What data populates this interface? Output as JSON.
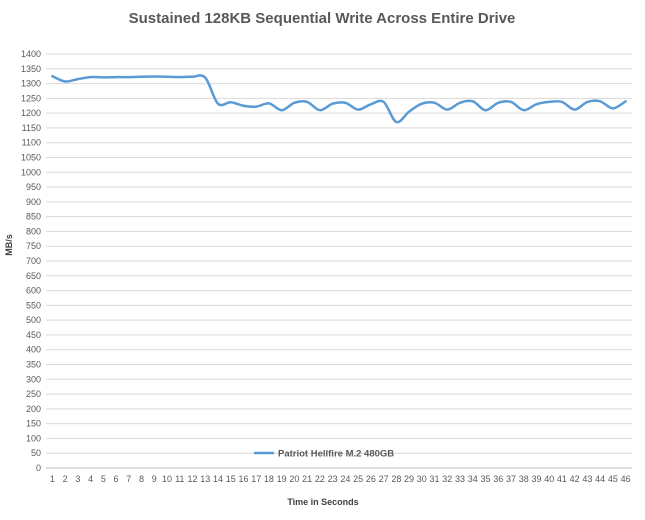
{
  "chart_data": {
    "type": "line",
    "title": "Sustained 128KB Sequential Write Across Entire Drive",
    "xlabel": "Time in Seconds",
    "ylabel": "MB/s",
    "ylim": [
      0,
      1400
    ],
    "ytick_step": 50,
    "grid": true,
    "legend_position": "bottom-left",
    "categories": [
      "1",
      "2",
      "3",
      "4",
      "5",
      "6",
      "7",
      "8",
      "9",
      "10",
      "11",
      "12",
      "13",
      "14",
      "15",
      "16",
      "17",
      "18",
      "19",
      "20",
      "21",
      "22",
      "23",
      "24",
      "25",
      "26",
      "27",
      "28",
      "29",
      "30",
      "31",
      "32",
      "33",
      "34",
      "35",
      "36",
      "37",
      "38",
      "39",
      "40",
      "41",
      "42",
      "43",
      "44",
      "45",
      "46"
    ],
    "series": [
      {
        "name": "Patriot Hellfire M.2 480GB",
        "color": "#5b9bd5",
        "values": [
          1325,
          1307,
          1315,
          1322,
          1321,
          1322,
          1322,
          1323,
          1324,
          1323,
          1322,
          1323,
          1320,
          1232,
          1237,
          1225,
          1222,
          1233,
          1210,
          1235,
          1238,
          1210,
          1232,
          1235,
          1212,
          1230,
          1238,
          1170,
          1205,
          1232,
          1235,
          1212,
          1235,
          1240,
          1210,
          1235,
          1238,
          1210,
          1230,
          1238,
          1238,
          1212,
          1238,
          1240,
          1216,
          1240
        ]
      }
    ]
  }
}
